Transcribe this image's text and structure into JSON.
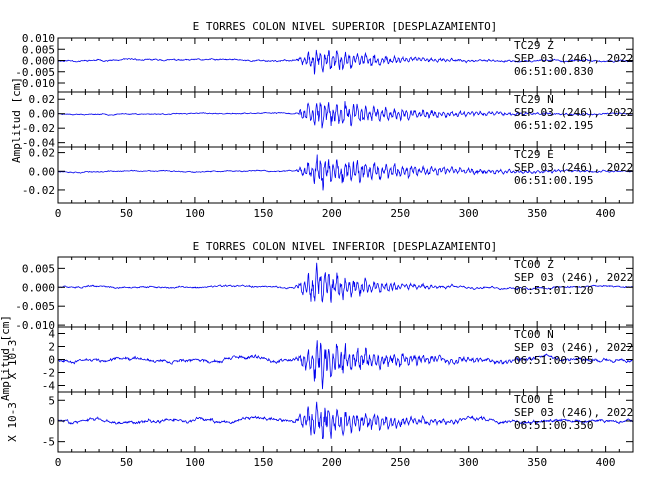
{
  "chart_data": [
    {
      "type": "line",
      "title": "E TORRES COLON NIVEL SUPERIOR [DESPLAZAMIENTO]",
      "ylabel": "Amplitud [cm]",
      "xlim": [
        0,
        420
      ],
      "xticks": [
        "0",
        "50",
        "100",
        "150",
        "200",
        "250",
        "300",
        "350",
        "400"
      ],
      "line_color": "#0000ee",
      "panels": [
        {
          "ylim": [
            -0.014,
            0.01
          ],
          "yticks": [
            0.01,
            0.005,
            0.0,
            -0.005,
            -0.01
          ],
          "ytick_labels": [
            "0.010",
            "0.005",
            "0.000",
            "-0.005",
            "-0.010"
          ],
          "ylabel_extra": "",
          "annotation": [
            "TC29 Z",
            "SEP 03 (246), 2022",
            "06:51:00.830"
          ],
          "signal": {
            "noise": 0.0006,
            "peak": 0.008,
            "arrival": 173,
            "peak_at": 190,
            "decay": 42,
            "seed": 11
          }
        },
        {
          "ylim": [
            -0.046,
            0.03
          ],
          "yticks": [
            0.02,
            0.0,
            -0.02,
            -0.04
          ],
          "ytick_labels": [
            "0.02",
            "0.00",
            "-0.02",
            "-0.04"
          ],
          "ylabel_extra": "",
          "annotation": [
            "TC29 N",
            "SEP 03 (246), 2022",
            "06:51:02.195"
          ],
          "signal": {
            "noise": 0.0012,
            "peak": 0.027,
            "arrival": 173,
            "peak_at": 188,
            "decay": 60,
            "seed": 23
          }
        },
        {
          "ylim": [
            -0.034,
            0.026
          ],
          "yticks": [
            0.02,
            0.0,
            -0.02
          ],
          "ytick_labels": [
            "0.02",
            "0.00",
            "-0.02"
          ],
          "ylabel_extra": "",
          "annotation": [
            "TC29 E",
            "SEP 03 (246), 2022",
            "06:51:00.195"
          ],
          "signal": {
            "noise": 0.001,
            "peak": 0.022,
            "arrival": 173,
            "peak_at": 192,
            "decay": 62,
            "seed": 37
          }
        }
      ]
    },
    {
      "type": "line",
      "title": "E TORRES COLON NIVEL INFERIOR [DESPLAZAMIENTO]",
      "ylabel": "Amplitud [cm]",
      "xlim": [
        0,
        420
      ],
      "xticks": [
        "0",
        "50",
        "100",
        "150",
        "200",
        "250",
        "300",
        "350",
        "400"
      ],
      "line_color": "#0000ee",
      "panels": [
        {
          "ylim": [
            -0.0105,
            0.008
          ],
          "yticks": [
            0.005,
            0.0,
            -0.005,
            -0.01
          ],
          "ytick_labels": [
            "0.005",
            "0.000",
            "-0.005",
            "-0.010"
          ],
          "ylabel_extra": "",
          "annotation": [
            "TC00 Z",
            "SEP 03 (246), 2022",
            "06:51:01.120"
          ],
          "signal": {
            "noise": 0.0004,
            "peak": 0.0072,
            "arrival": 172,
            "peak_at": 188,
            "decay": 34,
            "seed": 51
          }
        },
        {
          "ylim": [
            -5.0,
            5.0
          ],
          "yticks": [
            4,
            2,
            0,
            -2,
            -4
          ],
          "ytick_labels": [
            "4",
            "2",
            "0",
            "-2",
            "-4"
          ],
          "ylabel_extra": "X 10-3",
          "annotation": [
            "TC00 N",
            "SEP 03 (246), 2022",
            "06:51:00.305"
          ],
          "signal": {
            "noise": 0.45,
            "peak": 4.6,
            "arrival": 172,
            "peak_at": 190,
            "decay": 45,
            "seed": 67
          }
        },
        {
          "ylim": [
            -7.5,
            7.0
          ],
          "yticks": [
            5,
            0,
            -5
          ],
          "ytick_labels": [
            "5",
            "0",
            "-5"
          ],
          "ylabel_extra": "X 10-3",
          "annotation": [
            "TC00 E",
            "SEP 03 (246), 2022",
            "06:51:00.350"
          ],
          "signal": {
            "noise": 0.7,
            "peak": 6.5,
            "arrival": 172,
            "peak_at": 190,
            "decay": 40,
            "seed": 83
          }
        }
      ]
    }
  ]
}
